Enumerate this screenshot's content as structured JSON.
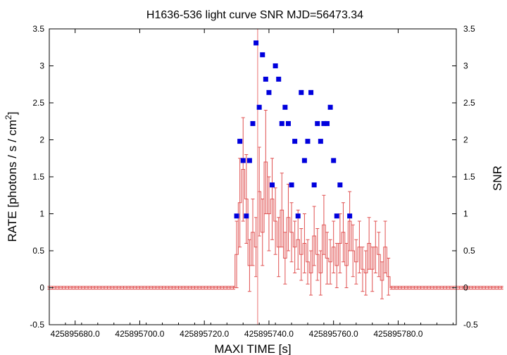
{
  "chart_data": {
    "type": "scatter",
    "title": "H1636-536 light curve  SNR MJD=56473.34",
    "xlabel": "MAXI TIME [s]",
    "ylabel_main": "RATE [photons / s / cm",
    "ylabel_sup": "2",
    "ylabel_close": "]",
    "y2label": "SNR",
    "xlim": [
      425895672,
      425895798
    ],
    "ylim": [
      -0.5,
      3.5
    ],
    "y2lim": [
      -0.5,
      3.5
    ],
    "x_ticks": [
      425895680,
      425895700,
      425895720,
      425895740,
      425895760,
      425895780
    ],
    "x_tick_labels": [
      "425895680.0",
      "425895700.0",
      "425895720.0",
      "425895740.0",
      "425895760.0",
      "425895780.0"
    ],
    "y_ticks": [
      -0.5,
      0,
      0.5,
      1,
      1.5,
      2,
      2.5,
      3,
      3.5
    ],
    "y_tick_labels": [
      "-0.5",
      "0",
      "0.5",
      "1",
      "1.5",
      "2",
      "2.5",
      "3",
      "3.5"
    ],
    "marker_time": 425895736.5,
    "colors": {
      "rate": "#e05050",
      "snr": "#0000dd",
      "marker": "#f0a0a0"
    },
    "rate_series": {
      "name": "RATE",
      "start": 425895672,
      "step": 1,
      "values": [
        0,
        0,
        0,
        0,
        0,
        0,
        0,
        0,
        0,
        0,
        0,
        0,
        0,
        0,
        0,
        0,
        0,
        0,
        0,
        0,
        0,
        0,
        0,
        0,
        0,
        0,
        0,
        0,
        0,
        0,
        0,
        0,
        0,
        0,
        0,
        0,
        0,
        0,
        0,
        0,
        0,
        0,
        0,
        0,
        0,
        0,
        0,
        0,
        0,
        0,
        0,
        0,
        0,
        0,
        0,
        0,
        0,
        0,
        0.45,
        1.15,
        1.6,
        1.2,
        0.3,
        0.75,
        0.55,
        1.3,
        0.75,
        1.7,
        1.0,
        1.2,
        0.9,
        0.55,
        1.05,
        0.4,
        0.95,
        0.75,
        0.55,
        0.65,
        0.45,
        0.6,
        0.35,
        0.2,
        0.7,
        0.45,
        0.2,
        0.85,
        0.4,
        0.35,
        0.55,
        0.3,
        0.6,
        0.75,
        0.3,
        0.9,
        0.5,
        0.35,
        0.55,
        0.25,
        0.2,
        0.6,
        0.25,
        0.55,
        0.45,
        0.1,
        0.55,
        0.15,
        0,
        0,
        0,
        0,
        0,
        0,
        0,
        0,
        0,
        0,
        0,
        0,
        0,
        0,
        0,
        0,
        0,
        0,
        0,
        0,
        0,
        0,
        0,
        0,
        0,
        0,
        0,
        0,
        0,
        0,
        0,
        0,
        0,
        0,
        0
      ],
      "errors": [
        0.02,
        0.02,
        0.02,
        0.02,
        0.02,
        0.02,
        0.02,
        0.02,
        0.02,
        0.02,
        0.02,
        0.02,
        0.02,
        0.02,
        0.02,
        0.02,
        0.02,
        0.02,
        0.02,
        0.02,
        0.02,
        0.02,
        0.02,
        0.02,
        0.02,
        0.02,
        0.02,
        0.02,
        0.02,
        0.02,
        0.02,
        0.02,
        0.02,
        0.02,
        0.02,
        0.02,
        0.02,
        0.02,
        0.02,
        0.02,
        0.02,
        0.02,
        0.02,
        0.02,
        0.02,
        0.02,
        0.02,
        0.02,
        0.02,
        0.02,
        0.02,
        0.02,
        0.02,
        0.02,
        0.02,
        0.02,
        0.02,
        0.02,
        0.45,
        0.6,
        0.7,
        0.6,
        0.35,
        0.45,
        0.4,
        0.6,
        0.45,
        0.7,
        0.5,
        0.55,
        0.45,
        0.4,
        0.5,
        0.35,
        0.45,
        0.4,
        0.35,
        0.4,
        0.35,
        0.4,
        0.3,
        0.3,
        0.4,
        0.35,
        0.3,
        0.4,
        0.35,
        0.3,
        0.35,
        0.3,
        0.4,
        0.4,
        0.3,
        0.4,
        0.35,
        0.3,
        0.35,
        0.3,
        0.3,
        0.35,
        0.3,
        0.35,
        0.3,
        0.25,
        0.35,
        0.25,
        0.02,
        0.02,
        0.02,
        0.02,
        0.02,
        0.02,
        0.02,
        0.02,
        0.02,
        0.02,
        0.02,
        0.02,
        0.02,
        0.02,
        0.02,
        0.02,
        0.02,
        0.02,
        0.02,
        0.02,
        0.02,
        0.02,
        0.02,
        0.02,
        0.02,
        0.02,
        0.02,
        0.02,
        0.02,
        0.02,
        0.02,
        0.02,
        0.02,
        0.02,
        0.02
      ]
    },
    "snr_series": {
      "name": "SNR",
      "x": [
        425895730,
        425895731,
        425895732,
        425895733,
        425895734,
        425895735,
        425895736,
        425895737,
        425895738,
        425895739,
        425895740,
        425895741,
        425895742,
        425895743,
        425895744,
        425895745,
        425895746,
        425895747,
        425895748,
        425895749,
        425895750,
        425895751,
        425895752,
        425895753,
        425895754,
        425895755,
        425895756,
        425895757,
        425895758,
        425895759,
        425895760,
        425895761,
        425895762,
        425895765
      ],
      "y": [
        0.97,
        1.98,
        1.72,
        0.97,
        1.72,
        2.22,
        3.31,
        2.44,
        3.15,
        2.82,
        2.64,
        1.39,
        3.0,
        2.82,
        2.22,
        2.44,
        2.22,
        1.39,
        1.98,
        0.97,
        2.64,
        1.72,
        1.98,
        2.64,
        1.39,
        2.22,
        1.98,
        2.22,
        2.22,
        2.44,
        1.72,
        0.97,
        1.39,
        0.97
      ]
    }
  }
}
